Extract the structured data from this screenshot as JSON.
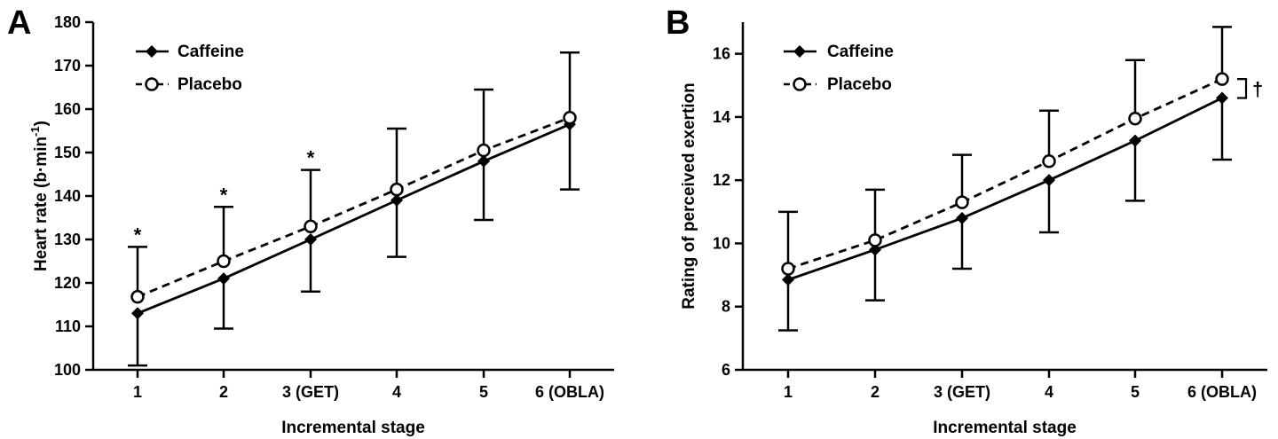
{
  "chart_data": [
    {
      "panel": "A",
      "type": "line",
      "xlabel": "Incremental stage",
      "ylabel": "Heart rate (b·min",
      "ylabel_sup": "-1",
      "ylabel_close": ")",
      "categories": [
        "1",
        "2",
        "3 (GET)",
        "4",
        "5",
        "6 (OBLA)"
      ],
      "ylim": [
        100,
        180
      ],
      "yticks": [
        100,
        110,
        120,
        130,
        140,
        150,
        160,
        170,
        180
      ],
      "grid": false,
      "legend_position": "top-left",
      "series": [
        {
          "name": "Caffeine",
          "style": "solid",
          "marker": "filled-diamond",
          "values": [
            113.0,
            121.0,
            130.0,
            139.0,
            148.0,
            156.5
          ],
          "error": [
            12.0,
            11.5,
            12.0,
            13.0,
            13.5,
            15.0
          ]
        },
        {
          "name": "Placebo",
          "style": "dashed",
          "marker": "open-circle",
          "values": [
            116.8,
            125.0,
            133.0,
            141.5,
            150.5,
            158.0
          ],
          "error": [
            11.5,
            12.5,
            13.0,
            14.0,
            14.0,
            15.0
          ]
        }
      ],
      "annotations": [
        {
          "text": "*",
          "category": "1"
        },
        {
          "text": "*",
          "category": "2"
        },
        {
          "text": "*",
          "category": "3 (GET)"
        }
      ]
    },
    {
      "panel": "B",
      "type": "line",
      "xlabel": "Incremental stage",
      "ylabel": "Rating of perceived exertion",
      "categories": [
        "1",
        "2",
        "3 (GET)",
        "4",
        "5",
        "6 (OBLA)"
      ],
      "ylim": [
        6,
        17
      ],
      "yticks": [
        6,
        8,
        10,
        12,
        14,
        16
      ],
      "grid": false,
      "legend_position": "top-left",
      "series": [
        {
          "name": "Caffeine",
          "style": "solid",
          "marker": "filled-diamond",
          "values": [
            8.85,
            9.8,
            10.8,
            12.0,
            13.25,
            14.6
          ],
          "error": [
            1.6,
            1.6,
            1.6,
            1.65,
            1.9,
            1.95
          ]
        },
        {
          "name": "Placebo",
          "style": "dashed",
          "marker": "open-circle",
          "values": [
            9.2,
            10.1,
            11.3,
            12.6,
            13.95,
            15.2
          ],
          "error": [
            1.8,
            1.6,
            1.5,
            1.6,
            1.85,
            1.65
          ]
        }
      ],
      "annotations": [
        {
          "text": "†",
          "category": "6 (OBLA)"
        }
      ]
    }
  ]
}
